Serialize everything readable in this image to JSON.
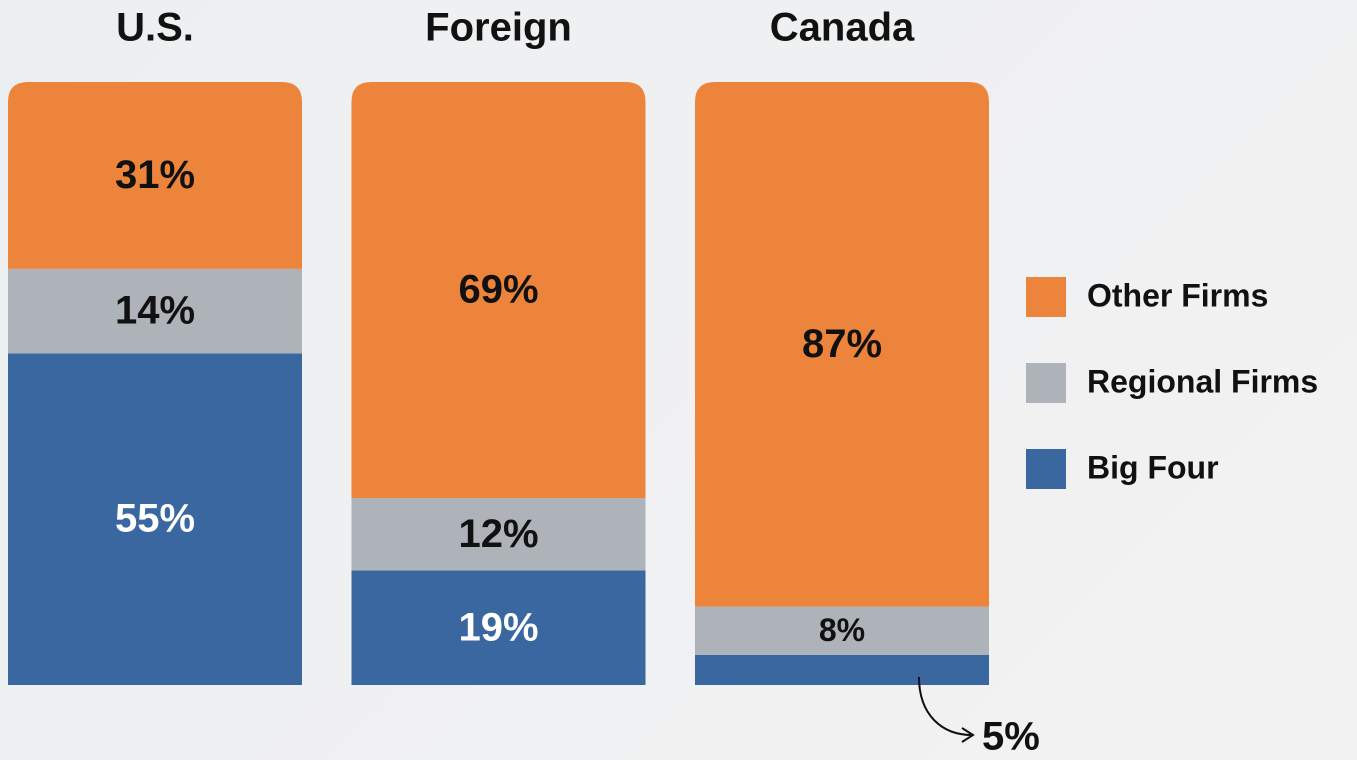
{
  "chart_data": {
    "type": "stacked_bar",
    "categories": [
      "U.S.",
      "Foreign",
      "Canada"
    ],
    "series": [
      {
        "name": "Big Four",
        "color": "#3a67a0",
        "label_color": "#ffffff",
        "values": [
          55,
          19,
          5
        ],
        "value_labels": [
          "55%",
          "19%",
          "5%"
        ]
      },
      {
        "name": "Regional Firms",
        "color": "#adb3b9",
        "label_color": "#111111",
        "values": [
          14,
          12,
          8
        ],
        "value_labels": [
          "14%",
          "12%",
          "8%"
        ]
      },
      {
        "name": "Other Firms",
        "color": "#ed843b",
        "label_color": "#111111",
        "values": [
          31,
          69,
          87
        ],
        "value_labels": [
          "31%",
          "69%",
          "87%"
        ]
      }
    ],
    "legend": "right"
  }
}
